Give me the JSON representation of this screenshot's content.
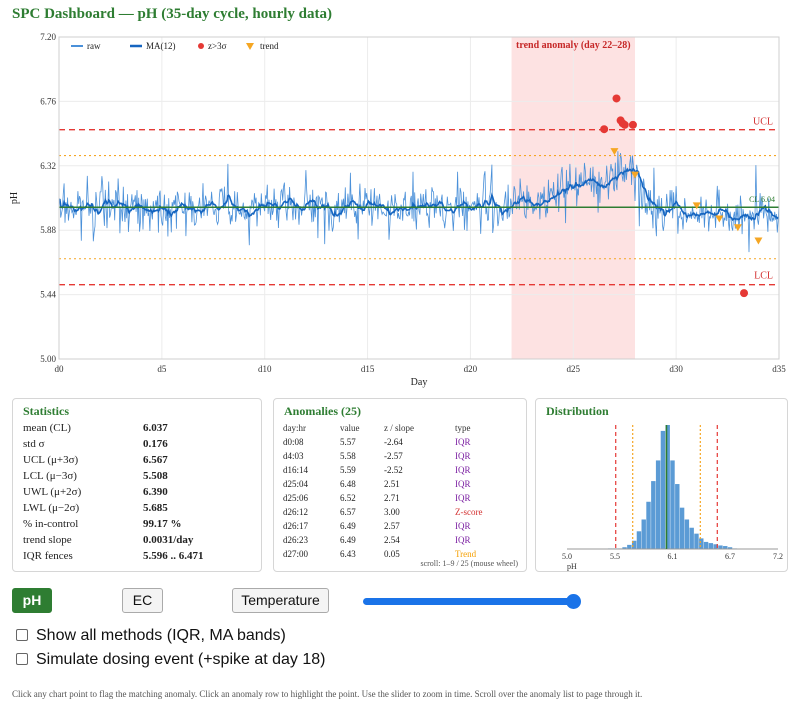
{
  "title": "SPC Dashboard — pH  (35-day cycle, hourly data)",
  "chart_data": {
    "type": "line",
    "x_unit": "day",
    "xlabel": "Day",
    "ylabel": "pH",
    "xlim": [
      0,
      35
    ],
    "ylim": [
      5.0,
      7.2
    ],
    "x_ticks": [
      "d0",
      "d5",
      "d10",
      "d15",
      "d20",
      "d25",
      "d30",
      "d35"
    ],
    "y_ticks": [
      "5.00",
      "5.44",
      "5.88",
      "6.32",
      "6.76",
      "7.20"
    ],
    "legend": [
      "raw",
      "MA(12)",
      "z>3σ",
      "trend"
    ],
    "legend_position": "top-left",
    "control_lines": {
      "UCL": 6.567,
      "LCL": 5.508,
      "UWL": 6.39,
      "LWL": 5.685,
      "CL": 6.037
    },
    "control_labels": {
      "UCL": "UCL",
      "LCL": "LCL",
      "CL": "CL 6.04"
    },
    "trend_window": {
      "start": 22,
      "end": 28,
      "label": "trend anomaly (day 22–28)"
    },
    "outlier_points": [
      {
        "day": 26.5,
        "value": 6.57
      },
      {
        "day": 27.1,
        "value": 6.78
      },
      {
        "day": 27.3,
        "value": 6.63
      },
      {
        "day": 27.4,
        "value": 6.61
      },
      {
        "day": 27.5,
        "value": 6.6
      },
      {
        "day": 27.9,
        "value": 6.6
      },
      {
        "day": 33.3,
        "value": 5.45
      }
    ],
    "trend_points": [
      {
        "day": 27.0,
        "value": 6.42
      },
      {
        "day": 28.0,
        "value": 6.26
      },
      {
        "day": 31.0,
        "value": 6.05
      },
      {
        "day": 32.1,
        "value": 5.96
      },
      {
        "day": 33.0,
        "value": 5.9
      },
      {
        "day": 34.0,
        "value": 5.81
      }
    ],
    "distribution": {
      "type": "bar",
      "x_ticks": [
        "5.0",
        "5.5",
        "6.1",
        "6.7",
        "7.2"
      ],
      "xlabel": "pH",
      "bin_centers": [
        5.45,
        5.5,
        5.55,
        5.6,
        5.65,
        5.7,
        5.75,
        5.8,
        5.85,
        5.9,
        5.95,
        6.0,
        6.05,
        6.1,
        6.15,
        6.2,
        6.25,
        6.3,
        6.35,
        6.4,
        6.45,
        6.5,
        6.55,
        6.6,
        6.65,
        6.7,
        6.75
      ],
      "counts": [
        1,
        1,
        1,
        3,
        7,
        14,
        30,
        50,
        80,
        115,
        150,
        200,
        210,
        150,
        110,
        70,
        50,
        36,
        26,
        18,
        12,
        10,
        8,
        6,
        5,
        3,
        1
      ]
    }
  },
  "stats": {
    "title": "Statistics",
    "rows": [
      {
        "label": "mean (CL)",
        "value": "6.037"
      },
      {
        "label": "std σ",
        "value": "0.176"
      },
      {
        "label": "UCL (μ+3σ)",
        "value": "6.567"
      },
      {
        "label": "LCL (μ−3σ)",
        "value": "5.508"
      },
      {
        "label": "UWL (μ+2σ)",
        "value": "6.390"
      },
      {
        "label": "LWL (μ−2σ)",
        "value": "5.685"
      },
      {
        "label": "% in-control",
        "value": "99.17 %"
      },
      {
        "label": "trend slope",
        "value": "0.0031/day"
      },
      {
        "label": "IQR fences",
        "value": "5.596 .. 6.471"
      }
    ]
  },
  "anomalies": {
    "title": "Anomalies (25)",
    "headers": [
      "day:hr",
      "value",
      "z / slope",
      "type"
    ],
    "rows": [
      {
        "dayhr": "d0:08",
        "value": "5.57",
        "z": "-2.64",
        "type": "IQR",
        "cls": "t-IQR"
      },
      {
        "dayhr": "d4:03",
        "value": "5.58",
        "z": "-2.57",
        "type": "IQR",
        "cls": "t-IQR"
      },
      {
        "dayhr": "d16:14",
        "value": "5.59",
        "z": "-2.52",
        "type": "IQR",
        "cls": "t-IQR"
      },
      {
        "dayhr": "d25:04",
        "value": "6.48",
        "z": "2.51",
        "type": "IQR",
        "cls": "t-IQR"
      },
      {
        "dayhr": "d25:06",
        "value": "6.52",
        "z": "2.71",
        "type": "IQR",
        "cls": "t-IQR"
      },
      {
        "dayhr": "d26:12",
        "value": "6.57",
        "z": "3.00",
        "type": "Z-score",
        "cls": "t-Z"
      },
      {
        "dayhr": "d26:17",
        "value": "6.49",
        "z": "2.57",
        "type": "IQR",
        "cls": "t-IQR"
      },
      {
        "dayhr": "d26:23",
        "value": "6.49",
        "z": "2.54",
        "type": "IQR",
        "cls": "t-IQR"
      },
      {
        "dayhr": "d27:00",
        "value": "6.43",
        "z": "0.05",
        "type": "Trend",
        "cls": "t-Trend"
      }
    ],
    "scroll_note": "scroll: 1–9 / 25  (mouse wheel)"
  },
  "distribution_title": "Distribution",
  "controls": {
    "buttons": [
      "pH",
      "EC",
      "Temperature"
    ],
    "slider_percent": 100,
    "checkbox1": "Show all methods (IQR, MA bands)",
    "checkbox2": "Simulate dosing event (+spike at day 18)"
  },
  "footnote": "Click any chart point to flag the matching anomaly. Click an anomaly row to highlight the point. Use the slider to zoom in time. Scroll over the anomaly list to page through it.",
  "colors": {
    "raw": "#4a90d9",
    "ma": "#1565c0",
    "control": "#e53935",
    "warning": "#f5a623",
    "center": "#2e7d32",
    "trend_band": "#fde2e2",
    "accent": "#2e7d32"
  }
}
